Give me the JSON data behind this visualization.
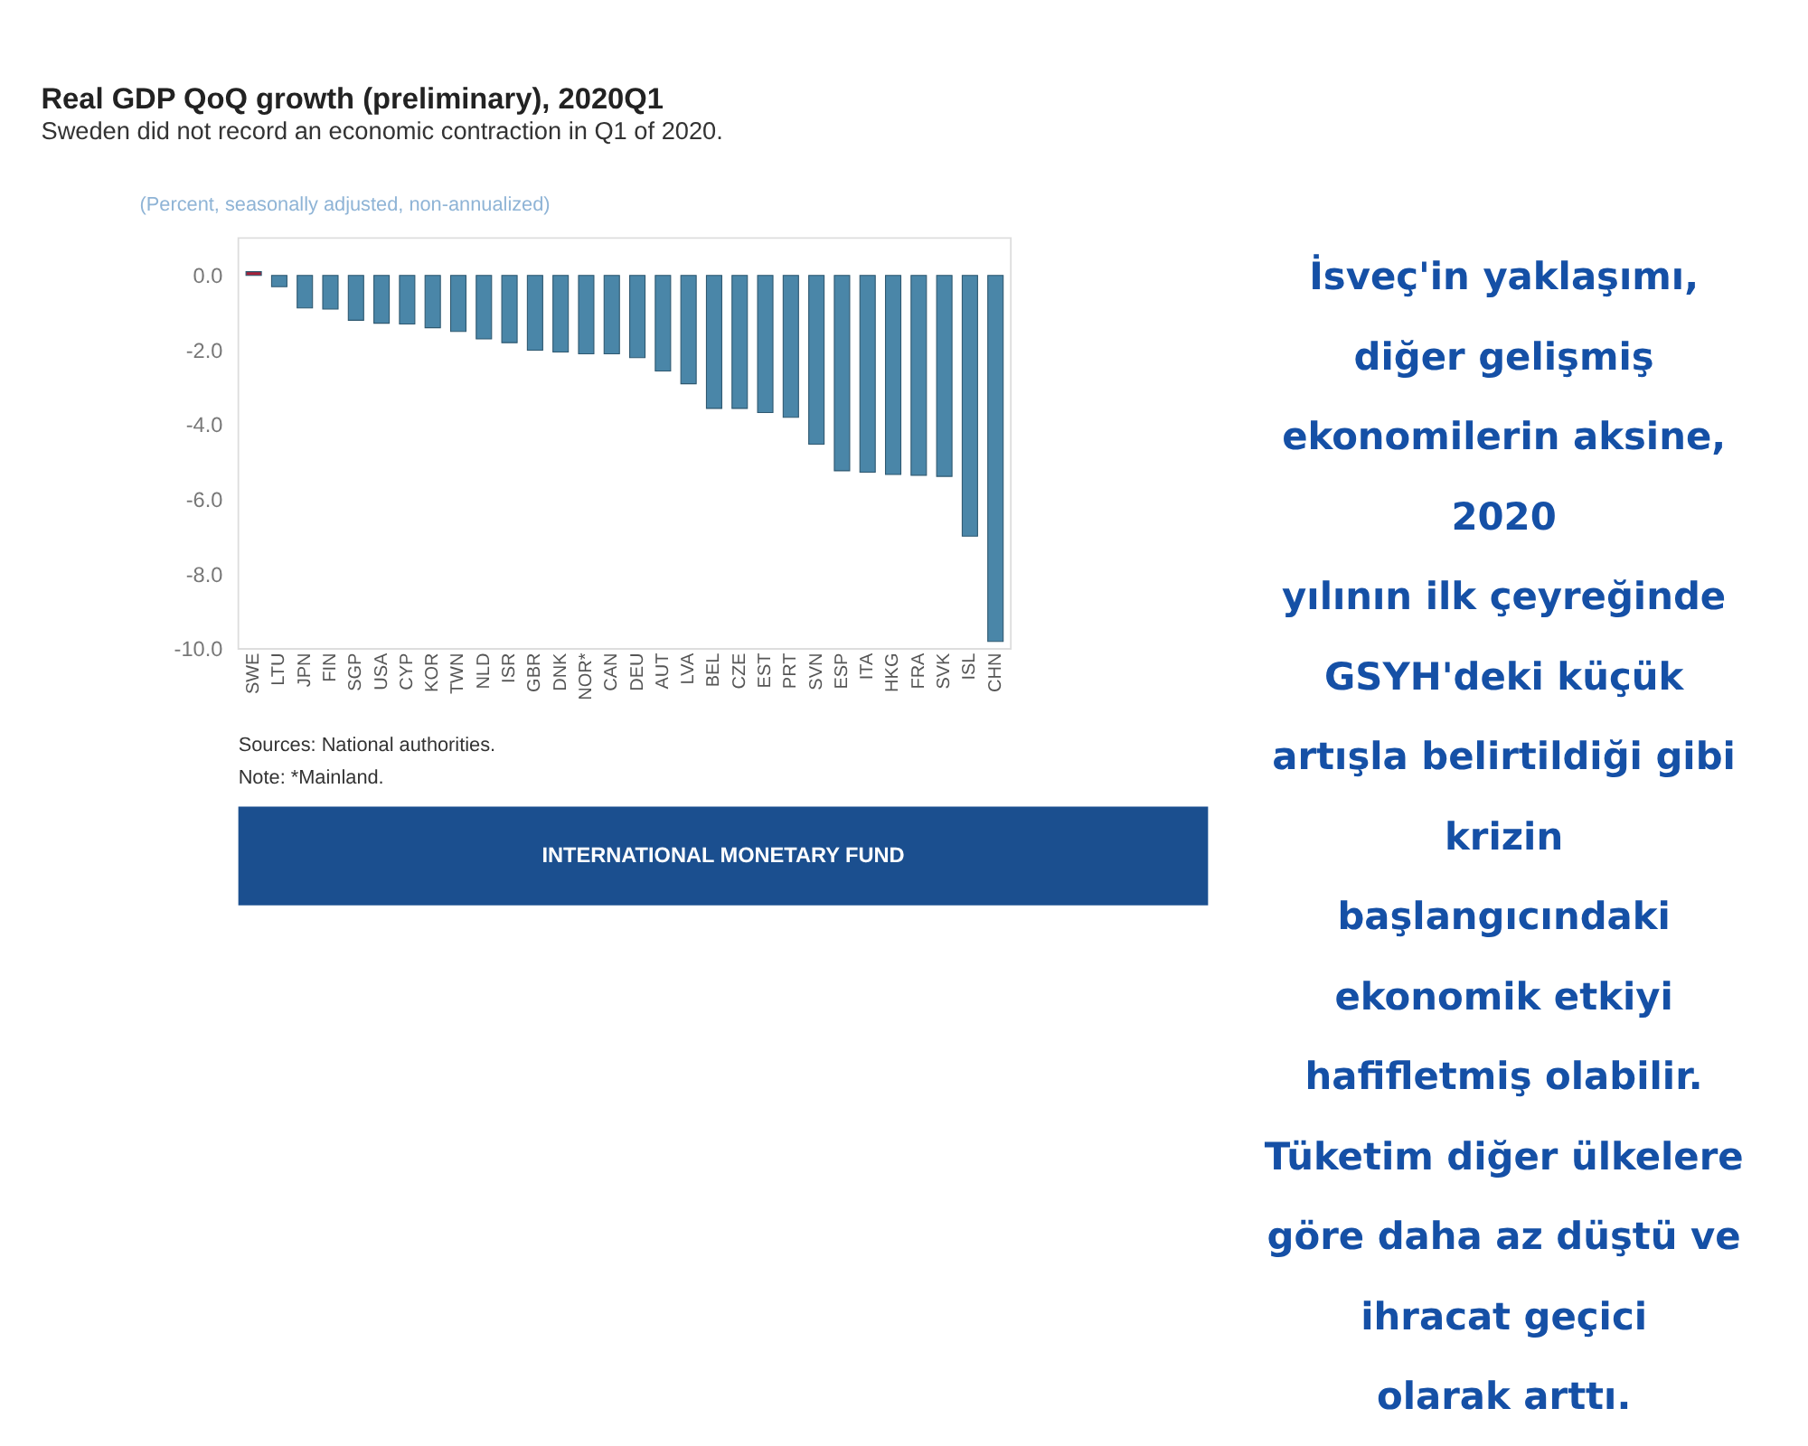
{
  "chart_data": {
    "type": "bar",
    "title": "Real GDP QoQ growth (preliminary), 2020Q1",
    "subtitle": "Sweden did not record an economic contraction in Q1 of 2020.",
    "ylabel": "(Percent, seasonally adjusted, non-annualized)",
    "categories": [
      "SWE",
      "LTU",
      "JPN",
      "FIN",
      "SGP",
      "USA",
      "CYP",
      "KOR",
      "TWN",
      "NLD",
      "ISR",
      "GBR",
      "DNK",
      "NOR*",
      "CAN",
      "DEU",
      "AUT",
      "LVA",
      "BEL",
      "CZE",
      "EST",
      "PRT",
      "SVN",
      "ESP",
      "ITA",
      "HKG",
      "FRA",
      "SVK",
      "ISL",
      "CHN"
    ],
    "values": [
      0.1,
      -0.3,
      -0.87,
      -0.9,
      -1.2,
      -1.28,
      -1.3,
      -1.4,
      -1.5,
      -1.7,
      -1.8,
      -2.0,
      -2.05,
      -2.1,
      -2.1,
      -2.2,
      -2.56,
      -2.9,
      -3.56,
      -3.56,
      -3.67,
      -3.8,
      -4.52,
      -5.23,
      -5.27,
      -5.33,
      -5.35,
      -5.38,
      -6.98,
      -9.8
    ],
    "colors": [
      "#a6213a",
      "#4a86a8",
      "#4a86a8",
      "#4a86a8",
      "#4a86a8",
      "#4a86a8",
      "#4a86a8",
      "#4a86a8",
      "#4a86a8",
      "#4a86a8",
      "#4a86a8",
      "#4a86a8",
      "#4a86a8",
      "#4a86a8",
      "#4a86a8",
      "#4a86a8",
      "#4a86a8",
      "#4a86a8",
      "#4a86a8",
      "#4a86a8",
      "#4a86a8",
      "#4a86a8",
      "#4a86a8",
      "#4a86a8",
      "#4a86a8",
      "#4a86a8",
      "#4a86a8",
      "#4a86a8",
      "#4a86a8",
      "#4a86a8"
    ],
    "ylim": [
      -10,
      1
    ],
    "yticks": [
      {
        "value": 0,
        "label": "0.0"
      },
      {
        "value": -2,
        "label": "-2.0"
      },
      {
        "value": -4,
        "label": "-4.0"
      },
      {
        "value": -6,
        "label": "-6.0"
      },
      {
        "value": -8,
        "label": "-8.0"
      },
      {
        "value": -10,
        "label": "-10.0"
      }
    ],
    "grid": false,
    "annotations": [
      "Sources: National authorities.",
      "Note: *Mainland.",
      "INTERNATIONAL MONETARY FUND",
      "İsveç'in yaklaşımı,\ndiğer gelişmiş\nekonomilerin aksine,\n2020\nyılının ilk çeyreğinde\nGSYH'deki küçük\nartışla belirtildiği gibi\nkrizin\nbaşlangıcındaki\nekonomik etkiyi\nhafifletmiş olabilir.\nTüketim diğer ülkelere\ngöre daha az düştü ve\nihracat geçici\nolarak arttı."
    ]
  }
}
